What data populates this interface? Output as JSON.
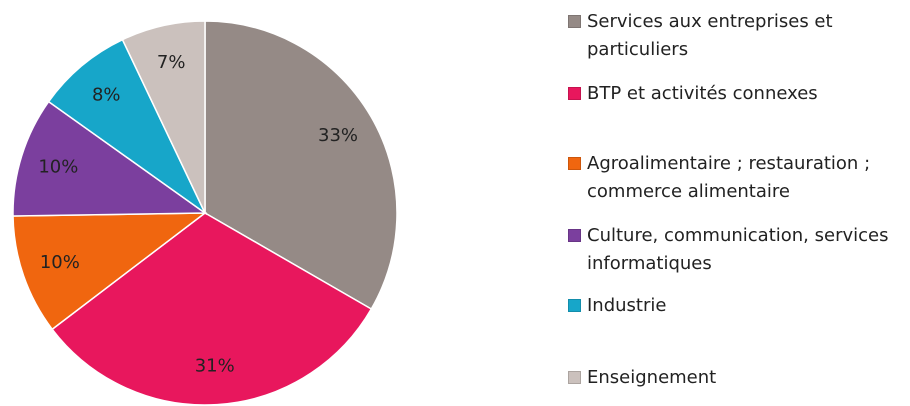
{
  "chart_data": {
    "type": "pie",
    "categories": [
      "Services aux entreprises et particuliers",
      "BTP et activités connexes",
      "Agroalimentaire ; restauration ; commerce alimentaire",
      "Culture, communication, services informatiques",
      "Industrie",
      "Enseignement"
    ],
    "values": [
      33,
      31,
      10,
      10,
      8,
      7
    ],
    "value_labels": [
      "33%",
      "31%",
      "10%",
      "10%",
      "8%",
      "7%"
    ],
    "colors": [
      "#958a86",
      "#e8175d",
      "#f0660f",
      "#7b3f9e",
      "#17a6c9",
      "#cbc1bd"
    ],
    "legend": "right"
  }
}
